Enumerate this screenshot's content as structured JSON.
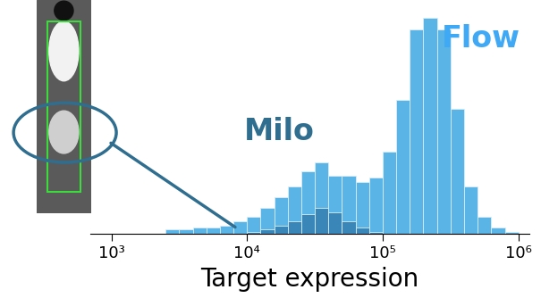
{
  "chart_data": {
    "type": "histogram",
    "x_label": "Target expression",
    "log": "x",
    "bins": [
      2512,
      3162,
      3981,
      5012,
      6310,
      7943,
      10000,
      12589,
      15849,
      19953,
      25119,
      31623,
      39811,
      50119,
      63096,
      79433,
      100000,
      125893,
      158489,
      199526,
      251189,
      316228,
      398107,
      501187,
      630957,
      794328,
      1000000
    ],
    "series": [
      {
        "name": "Flow",
        "color": "#5ab4e6",
        "values": [
          2,
          2,
          3,
          3,
          4,
          6,
          8,
          12,
          17,
          22,
          29,
          33,
          27,
          27,
          24,
          26,
          38,
          62,
          95,
          100,
          95,
          58,
          22,
          8,
          3,
          1
        ]
      },
      {
        "name": "Milo",
        "color": "#3a86b8",
        "values": [
          0,
          0,
          0,
          0,
          0,
          0,
          1,
          2,
          4,
          6,
          9,
          12,
          10,
          6,
          3,
          1,
          0,
          0,
          0,
          0,
          0,
          0,
          0,
          0,
          0,
          0
        ]
      }
    ],
    "xlim": [
      700,
      1200000
    ],
    "xticks": [
      {
        "value": 1000,
        "label": "10³"
      },
      {
        "value": 10000,
        "label": "10⁴"
      },
      {
        "value": 100000,
        "label": "10⁵"
      },
      {
        "value": 1000000,
        "label": "10⁶"
      }
    ],
    "tick_labels": "x"
  }
}
